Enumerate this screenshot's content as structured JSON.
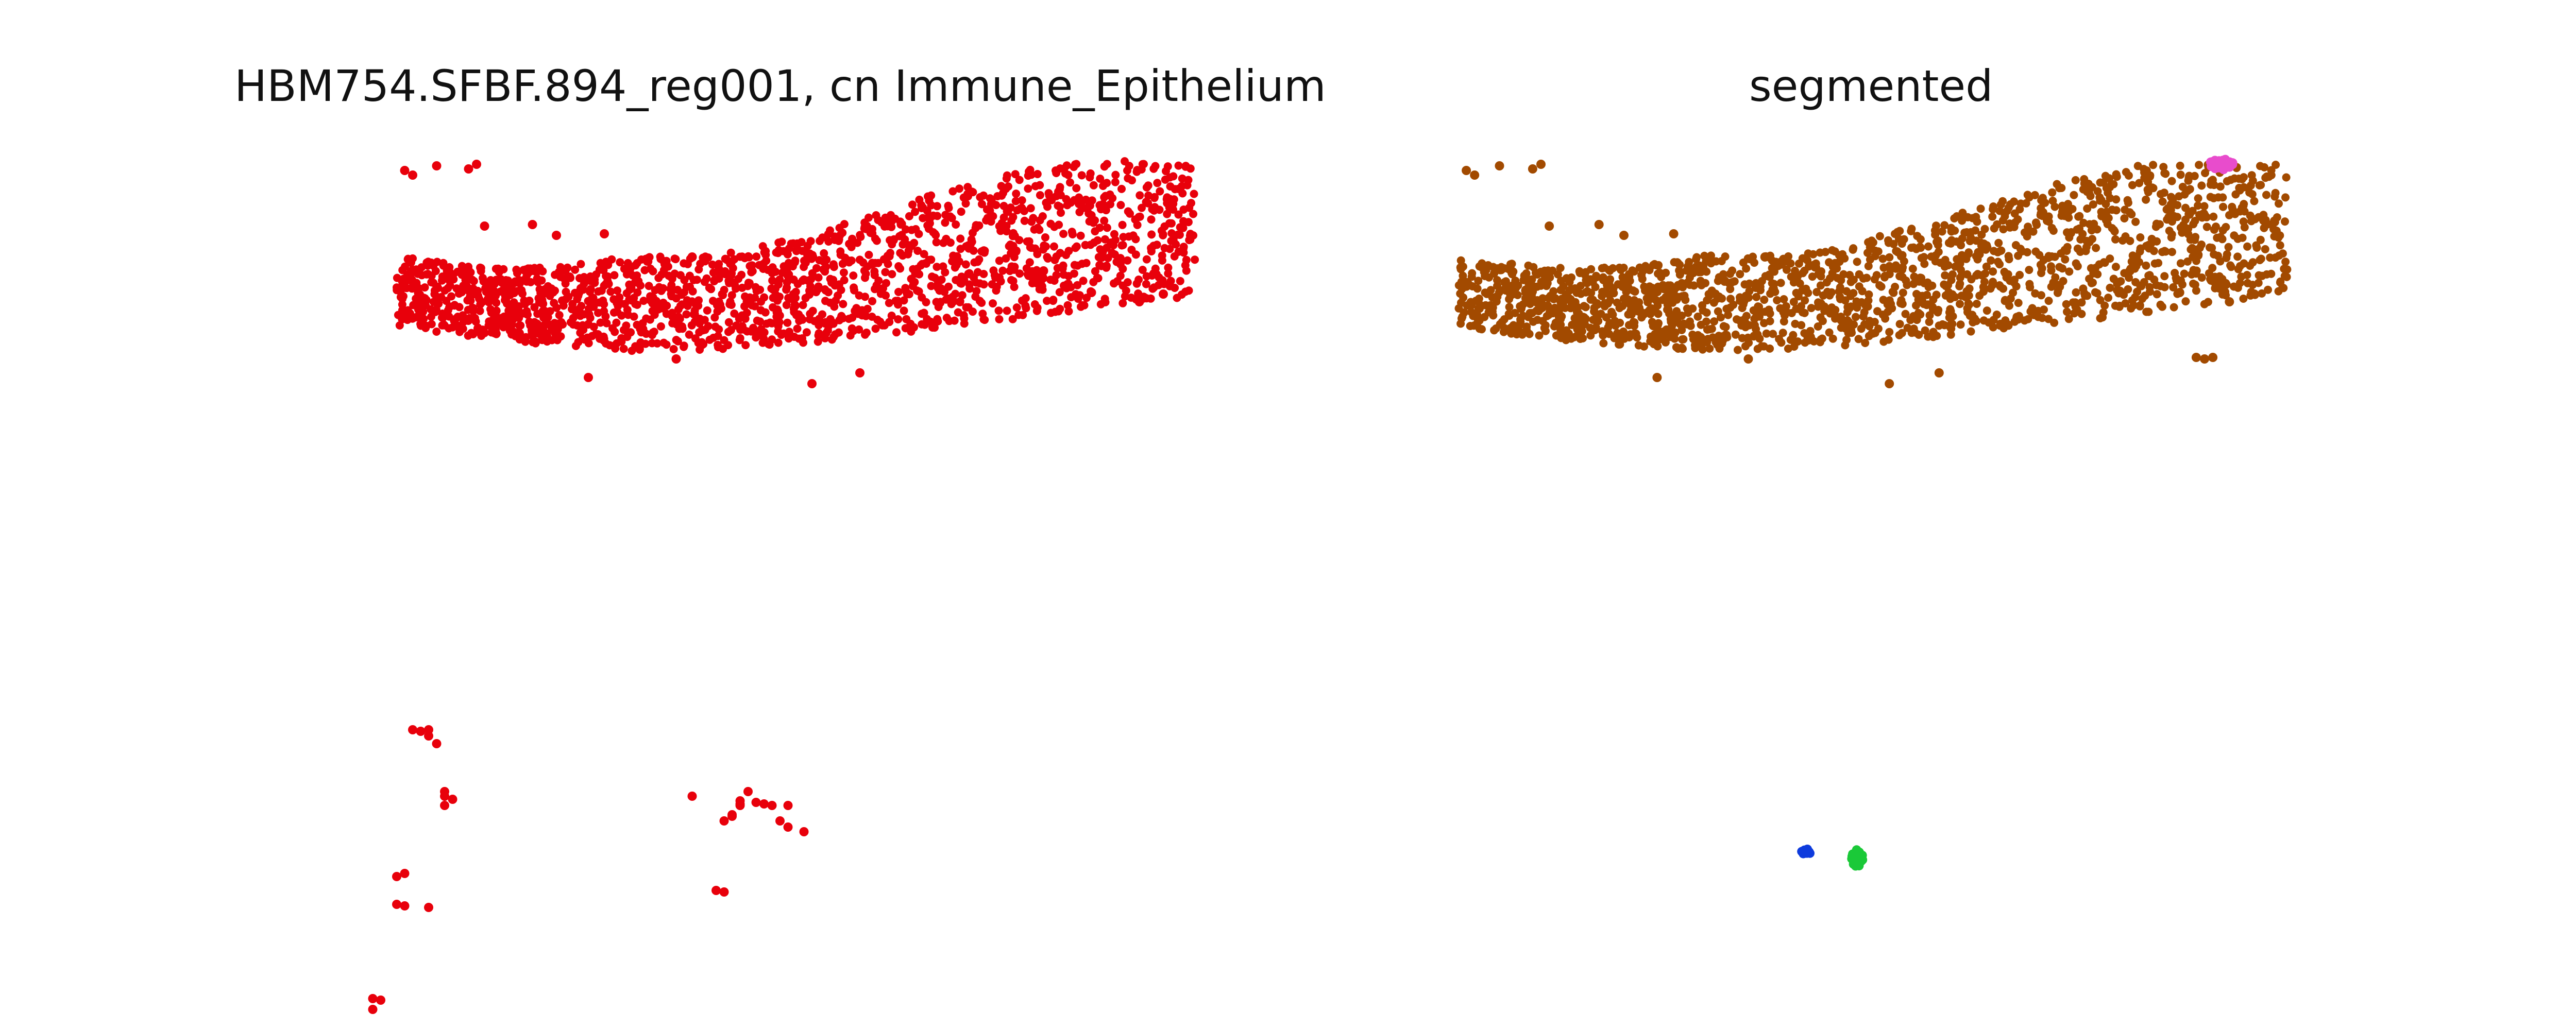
{
  "chart_data": [
    {
      "type": "scatter",
      "title": "HBM754.SFBF.894_reg001, cn Immune_Epithelium",
      "xlabel": "",
      "ylabel": "",
      "grid": false,
      "axes_visible": false,
      "legend": "none",
      "series": [
        {
          "color": "#e8000b",
          "clusters": [
            {
              "shape": "band",
              "xmin": 0.0,
              "xmax": 1.0,
              "top": [
                0.62,
                0.66,
                0.69,
                0.71,
                0.69,
                0.66,
                0.62,
                0.63,
                0.61,
                0.57,
                0.5,
                0.43,
                0.36,
                0.26,
                0.18,
                0.12,
                0.04,
                0.0,
                0.0,
                0.04,
                0.03
              ],
              "bottom": [
                1.08,
                1.12,
                1.15,
                1.18,
                1.2,
                1.22,
                1.24,
                1.24,
                1.23,
                1.21,
                1.19,
                1.17,
                1.14,
                1.11,
                1.08,
                1.05,
                1.02,
                0.98,
                0.94,
                0.92,
                0.9
              ],
              "n": 1800
            },
            {
              "shape": "scatter",
              "points": [
                [
                  0.01,
                  0.07
                ],
                [
                  0.02,
                  0.1
                ],
                [
                  0.05,
                  0.04
                ],
                [
                  0.09,
                  0.06
                ],
                [
                  0.1,
                  0.03
                ],
                [
                  0.11,
                  0.43
                ],
                [
                  0.17,
                  0.42
                ],
                [
                  0.2,
                  0.49
                ],
                [
                  0.26,
                  0.48
                ],
                [
                  0.37,
                  0.63
                ],
                [
                  0.52,
                  1.45
                ],
                [
                  0.58,
                  1.38
                ],
                [
                  0.24,
                  1.41
                ],
                [
                  0.35,
                  1.29
                ],
                [
                  0.81,
                  0.72
                ],
                [
                  0.87,
                  0.86
                ],
                [
                  0.93,
                  0.92
                ],
                [
                  0.96,
                  0.87
                ]
              ]
            }
          ]
        },
        {
          "color": "#e8000b",
          "clusters": [
            {
              "shape": "scatter",
              "points": [
                [
                  0.02,
                  3.69
                ],
                [
                  0.03,
                  3.7
                ],
                [
                  0.04,
                  3.73
                ],
                [
                  0.04,
                  3.69
                ],
                [
                  0.05,
                  3.78
                ],
                [
                  0.06,
                  4.09
                ],
                [
                  0.06,
                  4.12
                ],
                [
                  0.07,
                  4.14
                ],
                [
                  0.06,
                  4.18
                ],
                [
                  0.0,
                  4.64
                ],
                [
                  0.01,
                  4.62
                ],
                [
                  0.0,
                  4.82
                ],
                [
                  0.01,
                  4.83
                ],
                [
                  0.04,
                  4.84
                ],
                [
                  -0.03,
                  5.43
                ],
                [
                  -0.03,
                  5.5
                ],
                [
                  -0.02,
                  5.44
                ],
                [
                  0.37,
                  4.12
                ],
                [
                  0.42,
                  4.25
                ],
                [
                  0.43,
                  4.18
                ],
                [
                  0.42,
                  4.24
                ],
                [
                  0.43,
                  4.17
                ],
                [
                  0.41,
                  4.28
                ],
                [
                  0.44,
                  4.09
                ],
                [
                  0.43,
                  4.15
                ],
                [
                  0.45,
                  4.16
                ],
                [
                  0.46,
                  4.17
                ],
                [
                  0.47,
                  4.18
                ],
                [
                  0.49,
                  4.18
                ],
                [
                  0.48,
                  4.28
                ],
                [
                  0.49,
                  4.32
                ],
                [
                  0.51,
                  4.35
                ],
                [
                  0.4,
                  4.73
                ],
                [
                  0.41,
                  4.74
                ]
              ]
            }
          ]
        }
      ]
    },
    {
      "type": "scatter",
      "title": "segmented",
      "xlabel": "",
      "ylabel": "",
      "grid": false,
      "axes_visible": false,
      "legend": "none",
      "series": [
        {
          "color": "#a24a00",
          "clusters": [
            {
              "shape": "band",
              "xmin": 0.0,
              "xmax": 1.0,
              "top": [
                0.62,
                0.66,
                0.69,
                0.71,
                0.69,
                0.66,
                0.62,
                0.63,
                0.61,
                0.57,
                0.5,
                0.43,
                0.36,
                0.26,
                0.18,
                0.12,
                0.04,
                0.0,
                0.0,
                0.04,
                0.03
              ],
              "bottom": [
                1.08,
                1.12,
                1.15,
                1.18,
                1.2,
                1.22,
                1.24,
                1.24,
                1.23,
                1.21,
                1.19,
                1.17,
                1.14,
                1.11,
                1.08,
                1.05,
                1.02,
                0.98,
                0.94,
                0.92,
                0.9
              ],
              "n": 1800
            },
            {
              "shape": "scatter",
              "points": [
                [
                  0.01,
                  0.07
                ],
                [
                  0.02,
                  0.1
                ],
                [
                  0.05,
                  0.04
                ],
                [
                  0.09,
                  0.06
                ],
                [
                  0.1,
                  0.03
                ],
                [
                  0.11,
                  0.43
                ],
                [
                  0.17,
                  0.42
                ],
                [
                  0.2,
                  0.49
                ],
                [
                  0.26,
                  0.48
                ],
                [
                  0.37,
                  0.63
                ],
                [
                  0.52,
                  1.45
                ],
                [
                  0.58,
                  1.38
                ],
                [
                  0.24,
                  1.41
                ],
                [
                  0.35,
                  1.29
                ],
                [
                  0.81,
                  0.72
                ],
                [
                  0.87,
                  0.86
                ],
                [
                  0.93,
                  0.92
                ],
                [
                  0.96,
                  0.87
                ],
                [
                  0.89,
                  1.28
                ],
                [
                  0.9,
                  1.29
                ],
                [
                  0.91,
                  1.28
                ]
              ]
            }
          ]
        },
        {
          "color": "#e84ccc",
          "clusters": [
            {
              "shape": "blob",
              "cx": 0.92,
              "cy": 0.03,
              "rx": 0.015,
              "ry": 0.035,
              "n": 45
            }
          ]
        },
        {
          "color": "#0e3bdd",
          "clusters": [
            {
              "shape": "blob",
              "cx": 0.42,
              "cy": 4.48,
              "rx": 0.006,
              "ry": 0.02,
              "n": 12
            }
          ]
        },
        {
          "color": "#1ac938",
          "clusters": [
            {
              "shape": "blob",
              "cx": 0.48,
              "cy": 4.52,
              "rx": 0.008,
              "ry": 0.06,
              "n": 28
            }
          ]
        }
      ]
    }
  ]
}
